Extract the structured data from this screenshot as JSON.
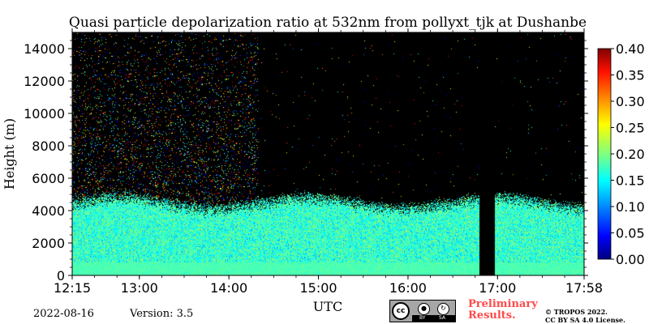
{
  "chart_data": {
    "type": "heatmap",
    "title": "Quasi particle depolarization ratio at 532nm from pollyxt_tjk at Dushanbe",
    "xlabel": "UTC",
    "ylabel": "Height (m)",
    "x_range": [
      "12:15",
      "17:58"
    ],
    "x_ticks": [
      "12:15",
      "13:00",
      "14:00",
      "15:00",
      "16:00",
      "17:00",
      "17:58"
    ],
    "y_range": [
      0,
      15000
    ],
    "y_ticks": [
      "0",
      "2000",
      "4000",
      "6000",
      "8000",
      "10000",
      "12000",
      "14000"
    ],
    "colorbar": {
      "colormap": "jet",
      "range": [
        0.0,
        0.4
      ],
      "ticks": [
        "0.00",
        "0.05",
        "0.10",
        "0.15",
        "0.20",
        "0.25",
        "0.30",
        "0.35",
        "0.40"
      ]
    },
    "no_data_color": "#000000",
    "features": {
      "aerosol_layer_top_m": 4700,
      "aerosol_layer_typical_depol": 0.17,
      "near_surface_depol": 0.18,
      "data_gap_utc": [
        "16:48",
        "16:58"
      ],
      "noisy_region_above_layer_until_utc": "14:20"
    }
  },
  "footer": {
    "date": "2022-08-16",
    "version": "Version: 3.5",
    "preliminary_line1": "Preliminary",
    "preliminary_line2": "Results.",
    "copyright_line1": "© TROPOS 2022.",
    "copyright_line2": "CC BY SA 4.0 License.",
    "license_badge": {
      "icons": [
        "cc-icon",
        "by-icon",
        "sa-icon"
      ],
      "cc_text": "cc",
      "by_text": "BY",
      "sa_text": "SA"
    }
  }
}
